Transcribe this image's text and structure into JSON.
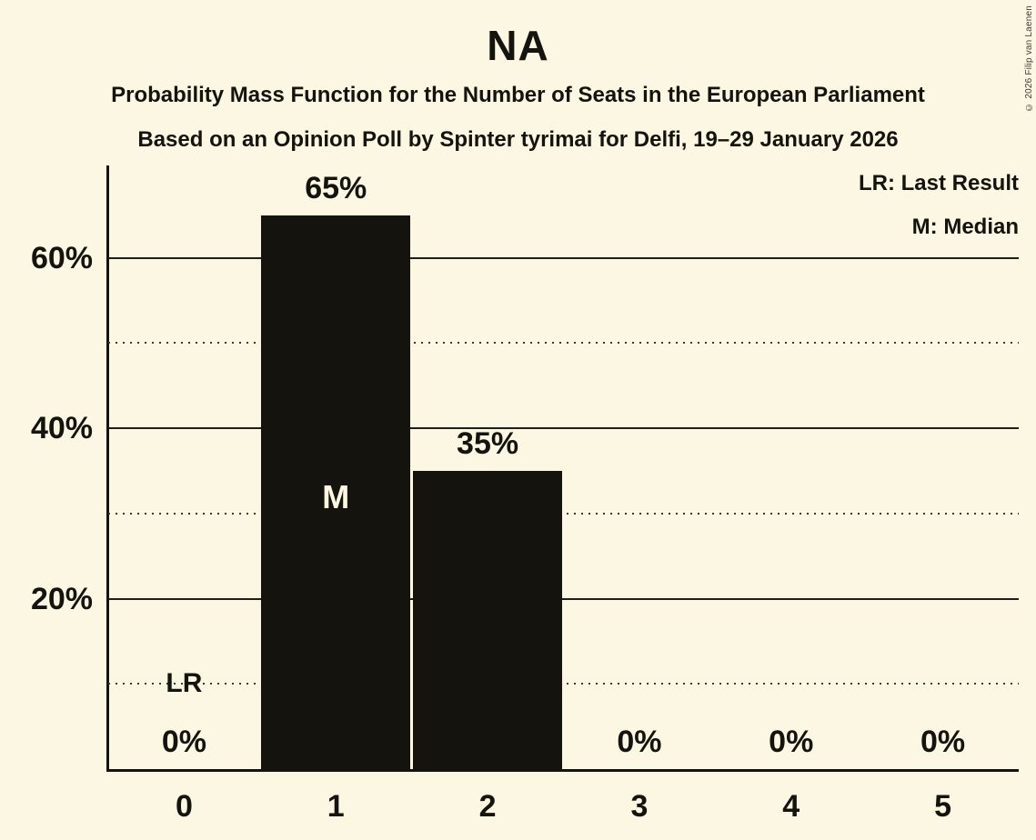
{
  "chart_data": {
    "type": "bar",
    "title": "NA",
    "subtitle1": "Probability Mass Function for the Number of Seats in the European Parliament",
    "subtitle2": "Based on an Opinion Poll by Spinter tyrimai for Delfi, 19–29 January 2026",
    "copyright": "© 2026 Filip van Laenen",
    "legend": {
      "lr": "LR: Last Result",
      "m": "M: Median"
    },
    "xlabel": "",
    "ylabel": "",
    "categories": [
      "0",
      "1",
      "2",
      "3",
      "4",
      "5"
    ],
    "values": [
      0,
      65,
      35,
      0,
      0,
      0
    ],
    "bar_labels": [
      "0%",
      "65%",
      "35%",
      "0%",
      "0%",
      "0%"
    ],
    "median_label": "M",
    "median_category_index": 1,
    "last_result_label": "LR",
    "last_result_category_index": 0,
    "ylim": [
      0,
      70
    ],
    "solid_gridlines": [
      20,
      40,
      60
    ],
    "ytick_labels": [
      "20%",
      "40%",
      "60%"
    ],
    "dotted_gridlines": [
      10,
      30,
      50
    ],
    "grid": "on",
    "legend_position": "top-right",
    "colors": {
      "background": "#FCF7E2",
      "bar": "#14130E",
      "text": "#14130E",
      "bar_text": "#FCF7E2",
      "solid_grid": "#1E1D17",
      "dotted_grid": "#3A3A30",
      "copyright_text": "#3C3C36"
    }
  }
}
